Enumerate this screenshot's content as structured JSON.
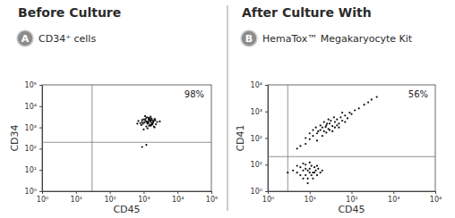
{
  "chart_data": [
    {
      "type": "scatter",
      "title": "Before Culture",
      "subtitle": "CD34⁺ cells",
      "panel_label": "A",
      "x_label": "CD45",
      "y_label": "CD34",
      "log": true,
      "color": "#111111",
      "marker": "dot",
      "annotations": [
        {
          "text": "98%"
        }
      ],
      "gates": {
        "x": 30,
        "y": 200
      },
      "xlim": [
        1,
        100000
      ],
      "ylim": [
        1,
        100000
      ],
      "xticks": [
        {
          "value": 1,
          "label": "10⁰"
        },
        {
          "value": 10,
          "label": "10¹"
        },
        {
          "value": 100,
          "label": "10²"
        },
        {
          "value": 1000,
          "label": "10³"
        },
        {
          "value": 10000,
          "label": "10⁴"
        },
        {
          "value": 100000,
          "label": "10⁵"
        }
      ],
      "yticks": [
        {
          "value": 1,
          "label": "10⁰"
        },
        {
          "value": 10,
          "label": "10¹"
        },
        {
          "value": 100,
          "label": "10²"
        },
        {
          "value": 1000,
          "label": "10³"
        },
        {
          "value": 10000,
          "label": "10⁴"
        },
        {
          "value": 100000,
          "label": "10⁵"
        }
      ],
      "x": [
        900,
        1100,
        1300,
        1500,
        1700,
        2000,
        800,
        1200,
        1400,
        1600,
        1900,
        2300,
        1000,
        1250,
        1450,
        1650,
        1850,
        2100,
        950,
        1150,
        1350,
        1550,
        1750,
        2500,
        700,
        1050,
        1300,
        1500,
        1800,
        2200,
        1100,
        1400,
        1600,
        1900,
        850,
        1200,
        1700,
        2000,
        1300,
        1500,
        650,
        3000,
        1000,
        1800,
        1400,
        1600,
        1200,
        2100,
        900,
        1700,
        1200,
        900
      ],
      "values": [
        1800,
        2200,
        1500,
        2500,
        1300,
        2000,
        1600,
        1100,
        2800,
        1900,
        1700,
        1400,
        2400,
        3000,
        1200,
        2100,
        1600,
        1000,
        1500,
        2600,
        1900,
        1300,
        2300,
        1800,
        2000,
        1700,
        900,
        2700,
        1500,
        2200,
        3400,
        1600,
        1200,
        2000,
        1300,
        1900,
        2600,
        1100,
        1700,
        2100,
        1500,
        1900,
        800,
        1400,
        2400,
        3200,
        1800,
        2500,
        2200,
        1600,
        150,
        120
      ]
    },
    {
      "type": "scatter",
      "title": "After Culture With",
      "subtitle": "HemaTox™ Megakaryocyte Kit",
      "panel_label": "B",
      "x_label": "CD45",
      "y_label": "CD41",
      "log": true,
      "color": "#111111",
      "marker": "dot",
      "annotations": [
        {
          "text": "56%"
        }
      ],
      "gates": {
        "x": 3,
        "y": 20
      },
      "xlim": [
        1,
        10000
      ],
      "ylim": [
        1,
        10000
      ],
      "xticks": [
        {
          "value": 1,
          "label": "10⁰"
        },
        {
          "value": 10,
          "label": "10¹"
        },
        {
          "value": 100,
          "label": "10²"
        },
        {
          "value": 1000,
          "label": "10³"
        },
        {
          "value": 10000,
          "label": "10⁴"
        }
      ],
      "yticks": [
        {
          "value": 1,
          "label": "10⁰"
        },
        {
          "value": 10,
          "label": "10¹"
        },
        {
          "value": 100,
          "label": "10²"
        },
        {
          "value": 1000,
          "label": "10³"
        },
        {
          "value": 10000,
          "label": "10⁴"
        }
      ],
      "x": [
        8,
        10,
        12,
        15,
        18,
        20,
        22,
        25,
        28,
        30,
        35,
        40,
        45,
        50,
        55,
        60,
        70,
        80,
        90,
        100,
        120,
        150,
        200,
        250,
        300,
        400,
        15,
        20,
        25,
        30,
        18,
        22,
        35,
        40,
        12,
        10,
        28,
        45,
        60,
        8,
        6,
        5,
        14,
        32,
        38,
        26,
        50,
        70,
        16,
        24,
        5,
        7,
        8,
        10,
        12,
        9,
        6,
        11,
        14,
        15,
        4,
        13,
        10,
        8,
        7,
        16,
        12,
        9,
        6,
        18,
        11,
        20,
        5,
        13,
        8,
        10,
        3,
        15,
        9,
        7
      ],
      "values": [
        60,
        90,
        120,
        150,
        200,
        250,
        180,
        300,
        220,
        350,
        280,
        400,
        500,
        350,
        600,
        450,
        700,
        550,
        900,
        800,
        1100,
        1300,
        1800,
        2200,
        2800,
        3500,
        80,
        120,
        160,
        200,
        300,
        400,
        180,
        250,
        200,
        150,
        500,
        300,
        900,
        100,
        50,
        40,
        250,
        450,
        600,
        350,
        250,
        400,
        180,
        260,
        5,
        6,
        4,
        7,
        5,
        3,
        8,
        9,
        6,
        4,
        6,
        8,
        5,
        7,
        3,
        7,
        3,
        6,
        4,
        5,
        4,
        6,
        9,
        5,
        10,
        12,
        5,
        9,
        2,
        11
      ]
    }
  ]
}
